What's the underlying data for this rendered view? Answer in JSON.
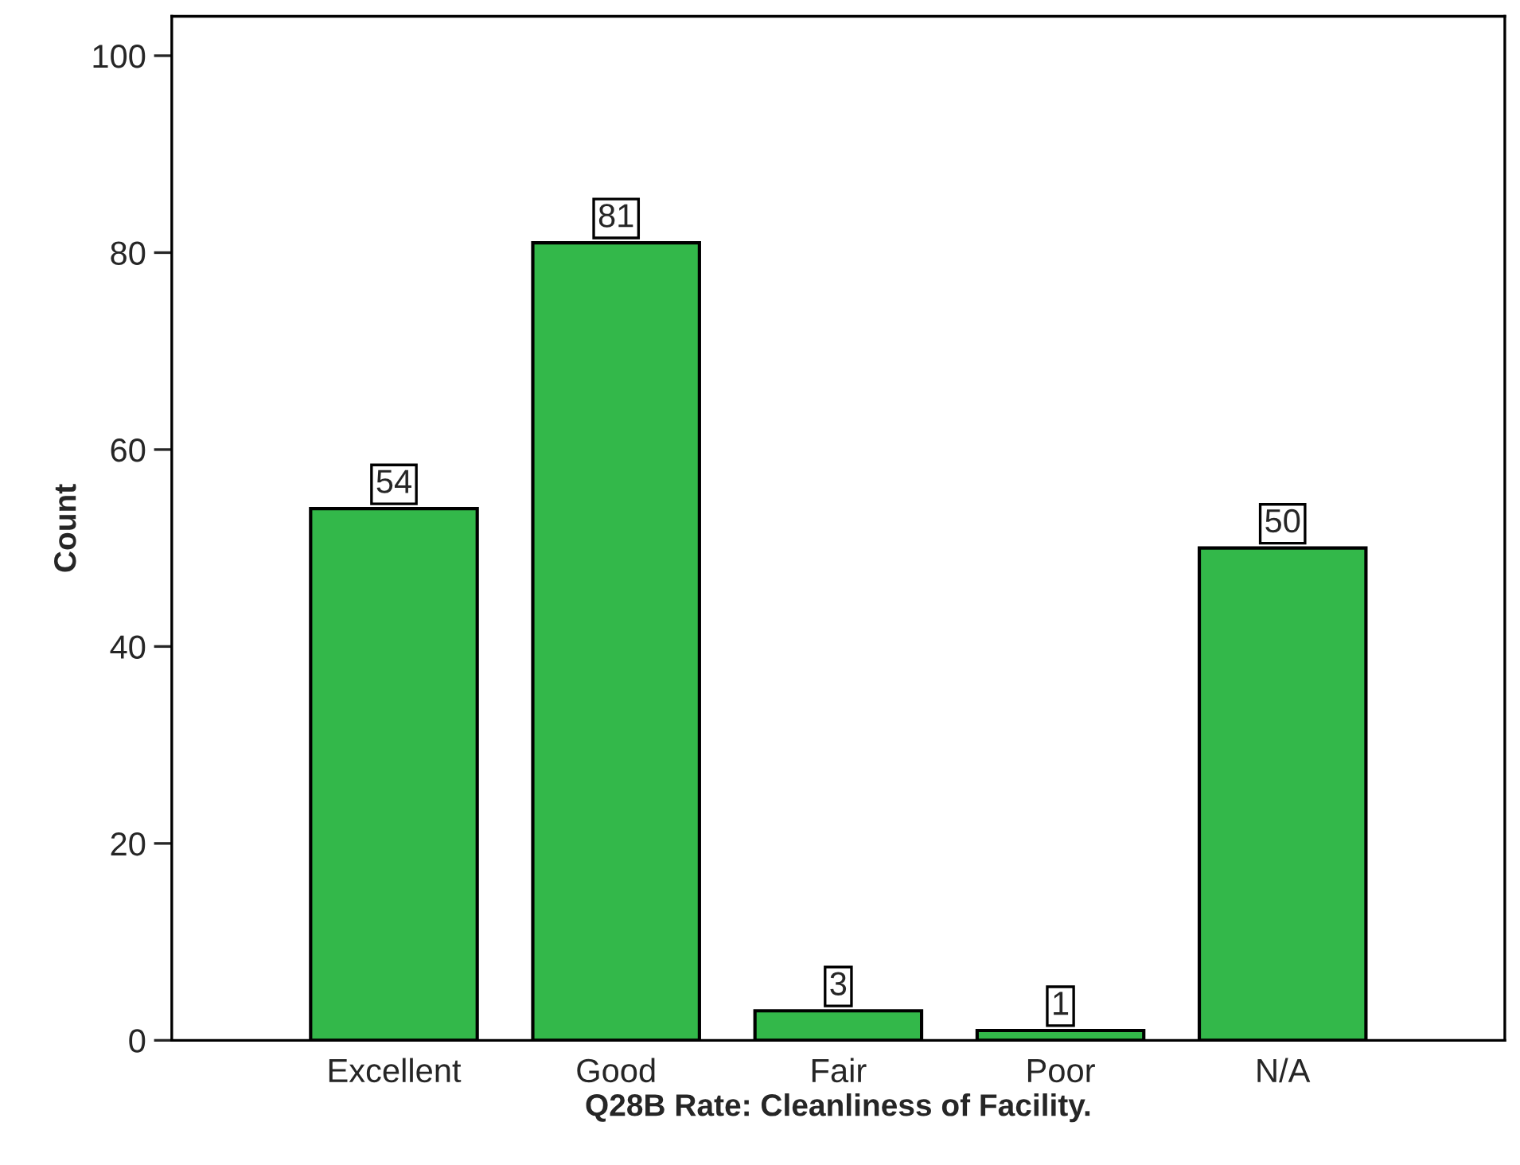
{
  "chart_data": {
    "type": "bar",
    "xlabel": "Q28B Rate: Cleanliness of Facility.",
    "ylabel": "Count",
    "categories": [
      "Excellent",
      "Good",
      "Fair",
      "Poor",
      "N/A"
    ],
    "values": [
      54,
      81,
      3,
      1,
      50
    ],
    "color": "#33b84a",
    "ylim": [
      0,
      104
    ],
    "yticks": [
      0,
      20,
      40,
      60,
      80,
      100
    ],
    "data_labels": true,
    "grid": false,
    "legend": false
  }
}
